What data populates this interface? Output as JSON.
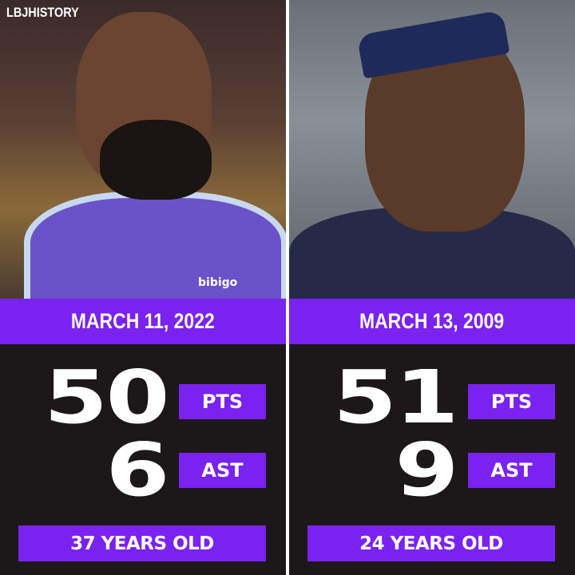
{
  "watermark": "LBJHISTORY",
  "colors": {
    "accent": "#7a22f0",
    "background": "#1c1819",
    "text": "#ffffff"
  },
  "games": [
    {
      "date": "MARCH 11, 2022",
      "points": "50",
      "points_label": "PTS",
      "assists": "6",
      "assists_label": "AST",
      "age": "37 YEARS OLD",
      "photo_text": "bibigo"
    },
    {
      "date": "MARCH 13, 2009",
      "points": "51",
      "points_label": "PTS",
      "assists": "9",
      "assists_label": "AST",
      "age": "24 YEARS OLD"
    }
  ]
}
